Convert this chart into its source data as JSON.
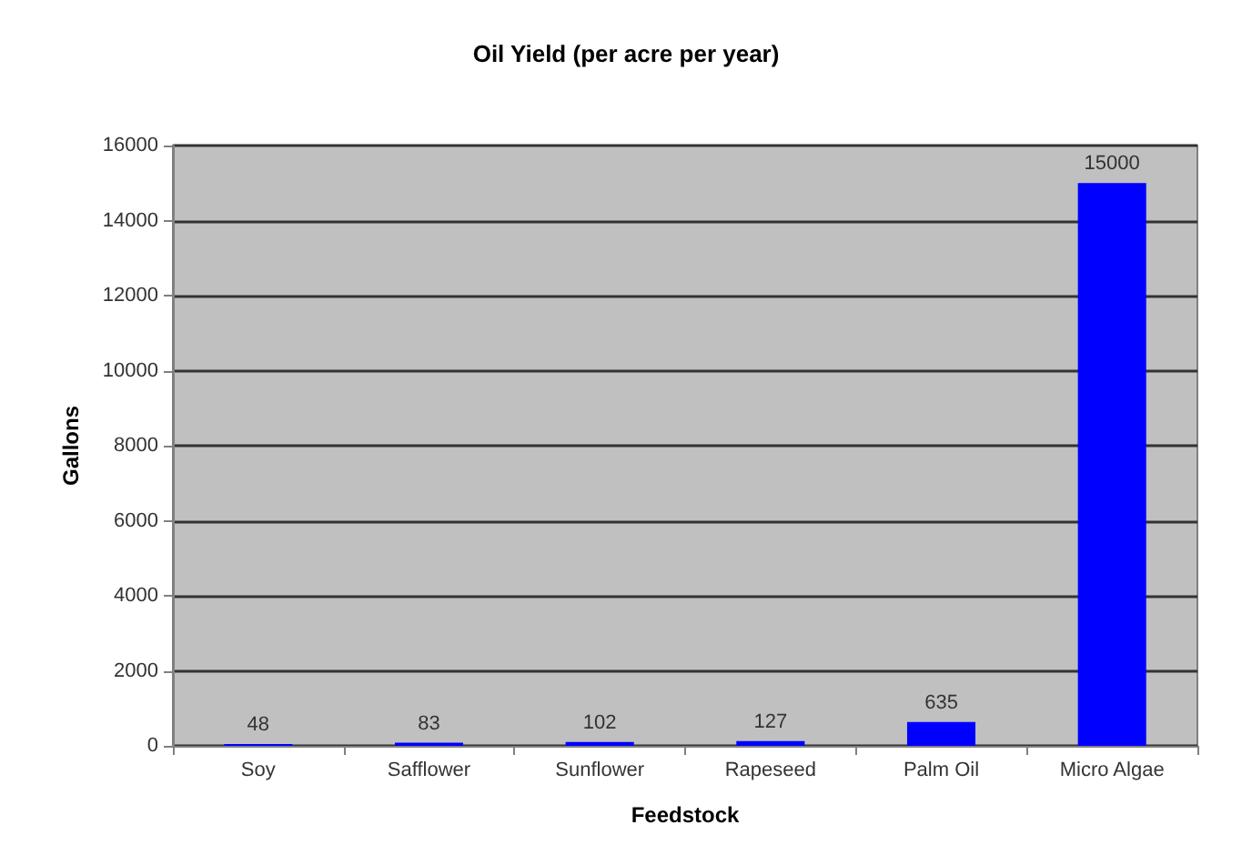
{
  "chart_data": {
    "type": "bar",
    "title": "Oil Yield (per acre per year)",
    "xlabel": "Feedstock",
    "ylabel": "Gallons",
    "categories": [
      "Soy",
      "Safflower",
      "Sunflower",
      "Rapeseed",
      "Palm Oil",
      "Micro Algae"
    ],
    "values": [
      48,
      83,
      102,
      127,
      635,
      15000
    ],
    "color": "#0000ff",
    "ylim": [
      0,
      16000
    ],
    "yticks": [
      0,
      2000,
      4000,
      6000,
      8000,
      10000,
      12000,
      14000,
      16000
    ],
    "grid": "y",
    "data_labels": true
  }
}
